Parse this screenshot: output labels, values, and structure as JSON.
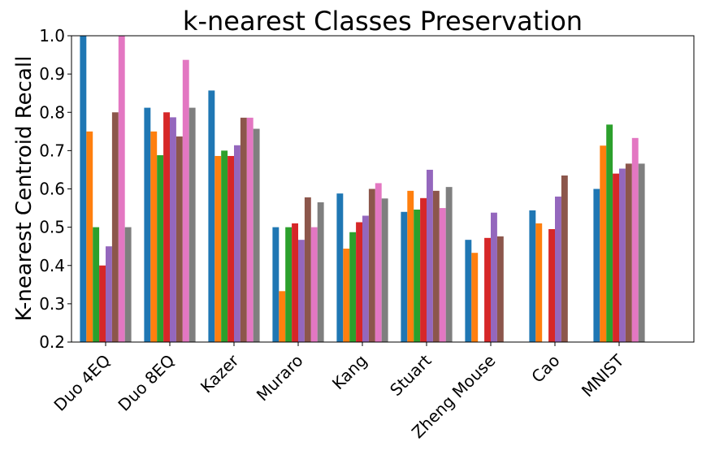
{
  "chart_data": {
    "type": "bar",
    "title": "k-nearest Classes Preservation",
    "xlabel": "",
    "ylabel": "K-nearest Centroid Recall",
    "ylim": [
      0.2,
      1.0
    ],
    "yticks": [
      "0.2",
      "0.3",
      "0.4",
      "0.5",
      "0.6",
      "0.7",
      "0.8",
      "0.9",
      "1.0"
    ],
    "categories": [
      "Duo 4EQ",
      "Duo 8EQ",
      "Kazer",
      "Muraro",
      "Kang",
      "Stuart",
      "Zheng Mouse",
      "Cao",
      "MNIST"
    ],
    "grid": false,
    "legend": "none",
    "series": [
      {
        "color": "#1f77b4",
        "values": [
          1.0,
          0.812,
          0.857,
          0.5,
          0.588,
          0.54,
          0.467,
          0.544,
          0.6
        ]
      },
      {
        "color": "#ff7f0e",
        "values": [
          0.75,
          0.75,
          0.686,
          0.333,
          0.444,
          0.595,
          0.433,
          0.51,
          0.713
        ]
      },
      {
        "color": "#2ca02c",
        "values": [
          0.5,
          0.688,
          0.7,
          0.5,
          0.487,
          0.546,
          null,
          null,
          0.768
        ]
      },
      {
        "color": "#d62728",
        "values": [
          0.4,
          0.8,
          0.686,
          0.51,
          0.513,
          0.576,
          0.472,
          0.495,
          0.64
        ]
      },
      {
        "color": "#9467bd",
        "values": [
          0.45,
          0.787,
          0.714,
          0.467,
          0.53,
          0.65,
          0.538,
          0.58,
          0.653
        ]
      },
      {
        "color": "#8c564b",
        "values": [
          0.8,
          0.737,
          0.786,
          0.578,
          0.6,
          0.595,
          0.476,
          0.635,
          0.666
        ]
      },
      {
        "color": "#e377c2",
        "values": [
          1.0,
          0.937,
          0.786,
          0.5,
          0.615,
          0.55,
          null,
          null,
          0.733
        ]
      },
      {
        "color": "#7f7f7f",
        "values": [
          0.5,
          0.812,
          0.757,
          0.565,
          0.575,
          0.605,
          null,
          null,
          0.666
        ]
      }
    ]
  }
}
